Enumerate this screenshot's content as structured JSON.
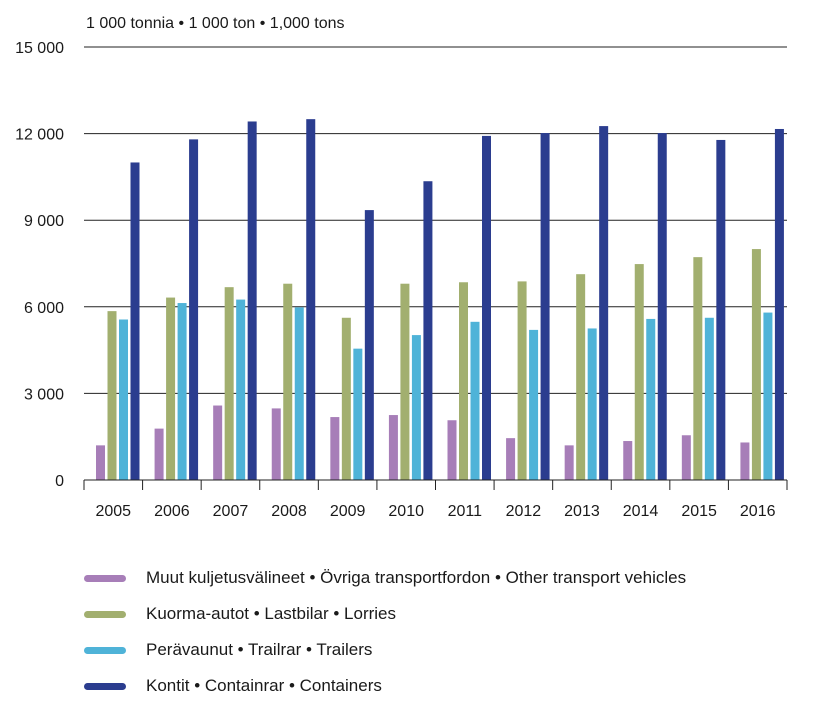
{
  "chart_data": {
    "type": "bar",
    "unit_label": "1 000 tonnia  •  1 000 ton  •  1,000 tons",
    "categories": [
      "2005",
      "2006",
      "2007",
      "2008",
      "2009",
      "2010",
      "2011",
      "2012",
      "2013",
      "2014",
      "2015",
      "2016"
    ],
    "ylim": [
      0,
      15000
    ],
    "y_ticks": [
      0,
      3000,
      6000,
      9000,
      12000,
      15000
    ],
    "y_tick_labels": [
      "0",
      "3 000",
      "6 000",
      "9 000",
      "12 000",
      "15 000"
    ],
    "grid": true,
    "legend_position": "bottom",
    "series": [
      {
        "name": "Muut kuljetusvälineet • Övriga transportfordon • Other transport vehicles",
        "color": "#a77eb8",
        "values": [
          1200,
          1780,
          2580,
          2480,
          2180,
          2250,
          2070,
          1450,
          1200,
          1350,
          1550,
          1300
        ]
      },
      {
        "name": "Kuorma-autot • Lastbilar • Lorries",
        "color": "#a2af6f",
        "values": [
          5850,
          6320,
          6680,
          6800,
          5620,
          6800,
          6850,
          6880,
          7130,
          7480,
          7720,
          8000
        ]
      },
      {
        "name": "Perävaunut • Trailrar • Trailers",
        "color": "#4fb3d8",
        "values": [
          5560,
          6130,
          6250,
          5980,
          4550,
          5020,
          5480,
          5200,
          5250,
          5580,
          5620,
          5800
        ]
      },
      {
        "name": "Kontit • Containrar • Containers",
        "color": "#2b3d8f",
        "values": [
          11000,
          11800,
          12420,
          12500,
          9350,
          10350,
          11920,
          12020,
          12260,
          12020,
          11780,
          12160
        ]
      }
    ]
  }
}
